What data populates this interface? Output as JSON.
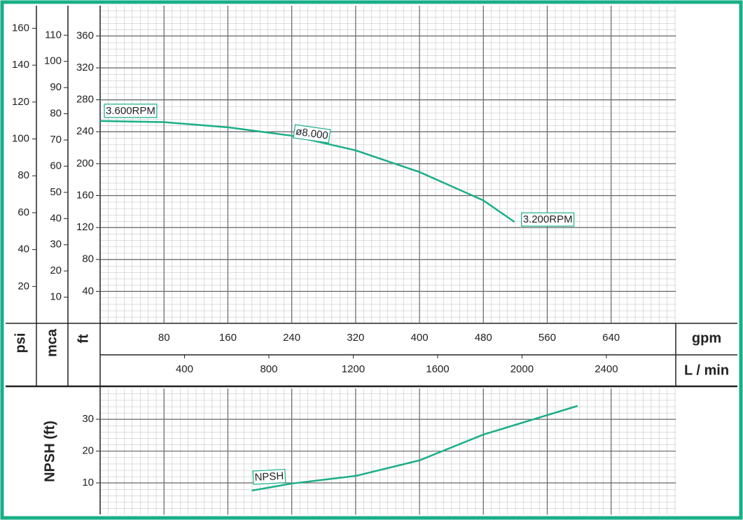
{
  "chart_data": [
    {
      "type": "line",
      "x_label": "gpm",
      "xlim": [
        0,
        721
      ],
      "xticks": [
        80,
        160,
        240,
        320,
        400,
        480,
        560,
        640
      ],
      "x2_label": "L / min",
      "x2lim": [
        0,
        2729
      ],
      "x2ticks": [
        400,
        800,
        1200,
        1600,
        2000,
        2400
      ],
      "y_label": "ft",
      "ylim": [
        0,
        398
      ],
      "yticks": [
        40,
        80,
        120,
        160,
        200,
        240,
        280,
        320,
        360
      ],
      "y2_label": "mca",
      "y2lim": [
        0,
        121.3
      ],
      "y2ticks": [
        10,
        20,
        30,
        40,
        50,
        60,
        70,
        80,
        90,
        100,
        110
      ],
      "y3_label": "psi",
      "y3lim": [
        0,
        172.3
      ],
      "y3ticks": [
        20,
        40,
        60,
        80,
        100,
        120,
        140,
        160
      ],
      "x": [
        0,
        80,
        160,
        240,
        320,
        400,
        480,
        519
      ],
      "series": [
        {
          "name": "ø8.000",
          "color": "#1aae88",
          "values": [
            253.5,
            252,
            245.6,
            235,
            216.7,
            189.5,
            154,
            127
          ]
        }
      ],
      "annotations": [
        {
          "text": "3.600RPM"
        },
        {
          "text": "3.200RPM"
        }
      ]
    },
    {
      "type": "line",
      "xlim": [
        0,
        721
      ],
      "y_label": "NPSH (ft)",
      "ylim": [
        0,
        39.7
      ],
      "yticks": [
        10,
        20,
        30
      ],
      "x": [
        190,
        240,
        320,
        400,
        480,
        598
      ],
      "series": [
        {
          "name": "NPSH",
          "color": "#1aae88",
          "values": [
            7.6,
            9.8,
            12.2,
            17.1,
            25.2,
            34.2
          ]
        }
      ]
    }
  ]
}
